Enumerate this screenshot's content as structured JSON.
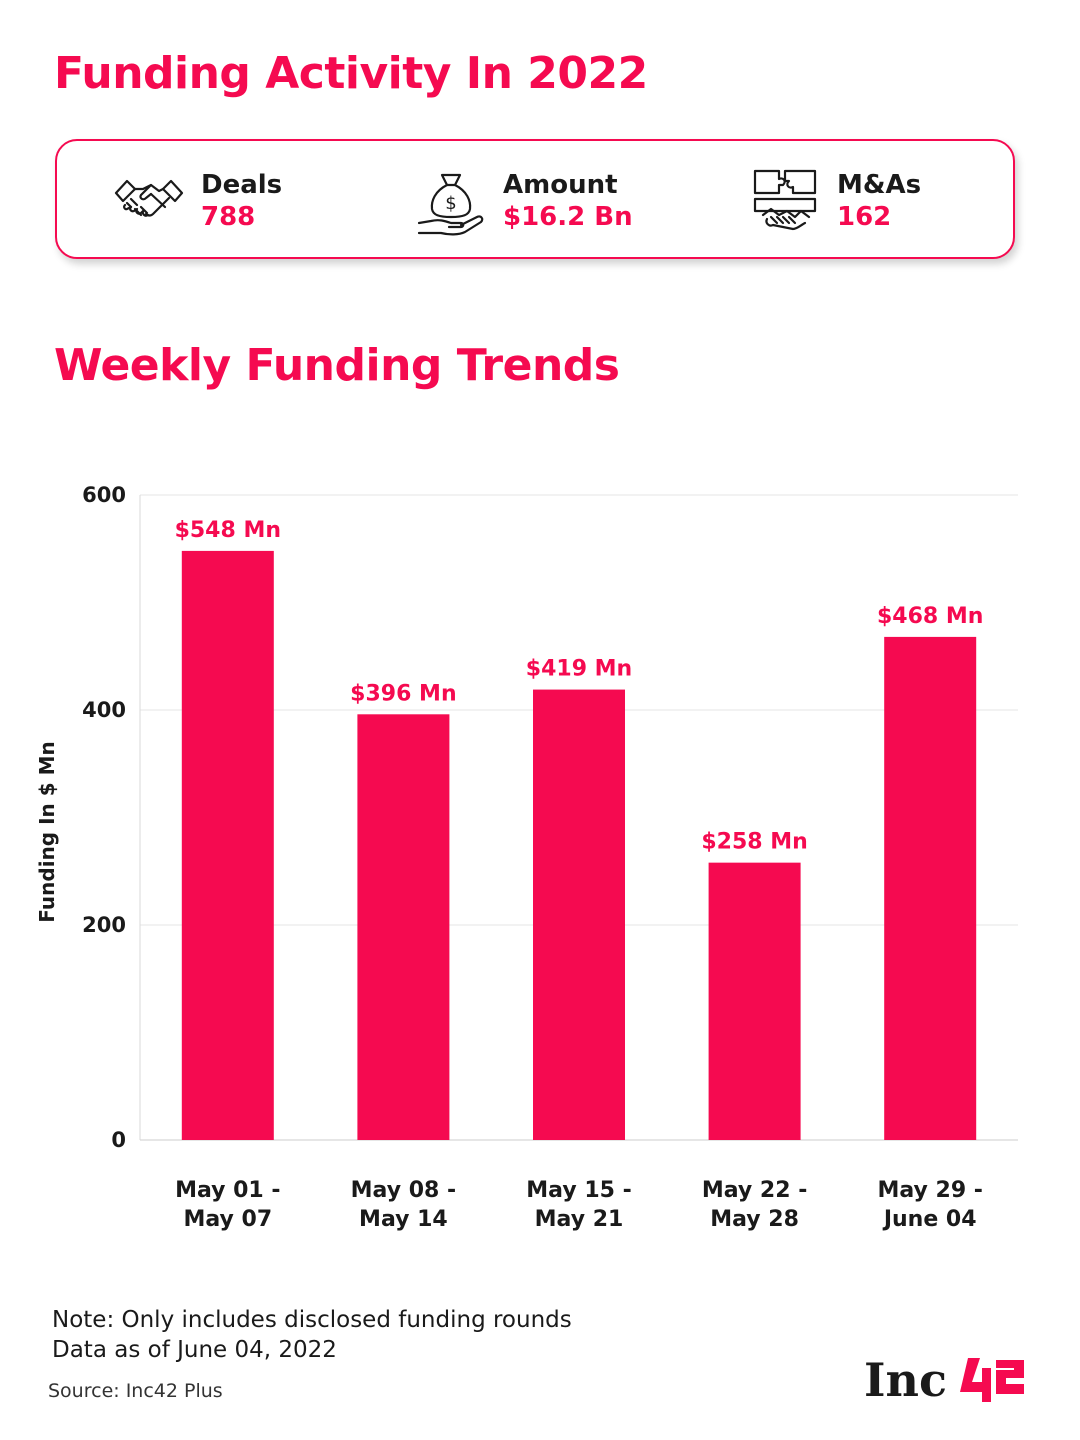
{
  "header": {
    "title": "Funding Activity In 2022"
  },
  "stats": [
    {
      "label": "Deals",
      "value": "788",
      "icon": "handshake-icon"
    },
    {
      "label": "Amount",
      "value": "$16.2 Bn",
      "icon": "money-bag-hand-icon"
    },
    {
      "label": "M&As",
      "value": "162",
      "icon": "puzzle-handshake-icon"
    }
  ],
  "chart_title": "Weekly Funding Trends",
  "chart_data": {
    "type": "bar",
    "title": "Weekly Funding Trends",
    "categories": [
      "May 01 - May 07",
      "May 08 - May 14",
      "May 15 - May 21",
      "May 22 - May 28",
      "May 29 - June 04"
    ],
    "category_lines": [
      [
        "May 01 -",
        "May 07"
      ],
      [
        "May 08 -",
        "May 14"
      ],
      [
        "May 15 -",
        "May 21"
      ],
      [
        "May 22 -",
        "May 28"
      ],
      [
        "May 29 -",
        "June 04"
      ]
    ],
    "values": [
      548,
      396,
      419,
      258,
      468
    ],
    "data_labels": [
      "$548 Mn",
      "$396 Mn",
      "$419 Mn",
      "$258 Mn",
      "$468 Mn"
    ],
    "xlabel": "",
    "ylabel": "Funding In $ Mn",
    "ylim": [
      0,
      600
    ],
    "yticks": [
      0,
      200,
      400,
      600
    ],
    "grid": true,
    "bar_color": "#f50a50"
  },
  "notes": [
    "Note: Only includes disclosed funding rounds",
    "Data as of June 04, 2022"
  ],
  "source": "Source: Inc42 Plus",
  "logo": {
    "text": "Inc42"
  },
  "colors": {
    "accent": "#f50a50",
    "text": "#1a1a1a",
    "grid": "#e6e6e6"
  }
}
